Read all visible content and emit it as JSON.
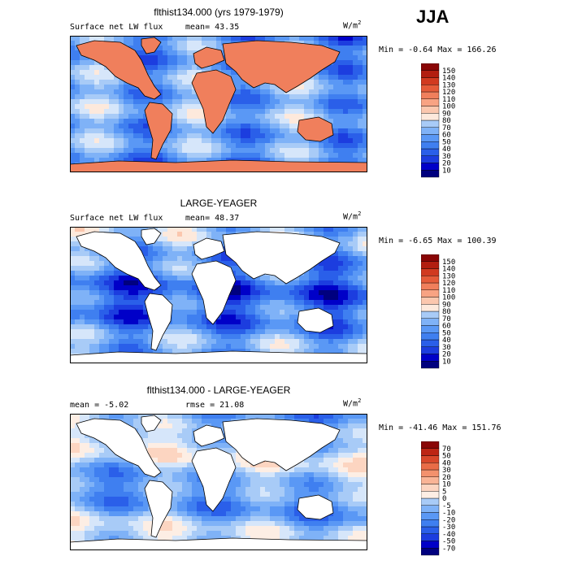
{
  "season": "JJA",
  "palettes": {
    "sequential": [
      "#00007f",
      "#0000c8",
      "#1c3ddf",
      "#2a5fe9",
      "#3f7ff0",
      "#5a98f5",
      "#7fb2f7",
      "#a8cbf7",
      "#d6e6fa",
      "#fde9dc",
      "#fbc7ae",
      "#f8a383",
      "#f07f5c",
      "#e55b39",
      "#d13a20",
      "#b21e10",
      "#8a0606"
    ],
    "diverging": [
      "#00007f",
      "#0000c8",
      "#1c3ddf",
      "#2a5fe9",
      "#3f7ff0",
      "#5a98f5",
      "#7fb2f7",
      "#a8cbf7",
      "#d6e6fa",
      "#fdeee4",
      "#fcd5c1",
      "#f9b496",
      "#f3916d",
      "#e96c47",
      "#d8472a",
      "#bd2514",
      "#8a0606"
    ]
  },
  "chart_data": [
    {
      "type": "heatmap",
      "title": "flthist134.000 (yrs 1979-1979)",
      "left_label": "Surface net LW flux",
      "stat_label": "mean=",
      "stat_value": "43.35",
      "units": "W/m",
      "units_exp": "2",
      "min_label": "Min =",
      "min_value": "-0.64",
      "max_label": "Max =",
      "max_value": "166.26",
      "colorbar_levels": [
        "10",
        "20",
        "30",
        "40",
        "50",
        "60",
        "70",
        "80",
        "90",
        "100",
        "110",
        "120",
        "130",
        "140",
        "150"
      ],
      "palette": "sequential",
      "masked_land": false
    },
    {
      "type": "heatmap",
      "title": "LARGE-YEAGER",
      "left_label": "Surface net LW flux",
      "stat_label": "mean=",
      "stat_value": "48.37",
      "units": "W/m",
      "units_exp": "2",
      "min_label": "Min =",
      "min_value": "-6.65",
      "max_label": "Max =",
      "max_value": "100.39",
      "colorbar_levels": [
        "10",
        "20",
        "30",
        "40",
        "50",
        "60",
        "70",
        "80",
        "90",
        "100",
        "110",
        "120",
        "130",
        "140",
        "150"
      ],
      "palette": "sequential",
      "masked_land": true
    },
    {
      "type": "heatmap",
      "title": "flthist134.000 - LARGE-YEAGER",
      "left_label": "mean =",
      "left_value": "-5.02",
      "stat_label": "rmse =",
      "stat_value": "21.08",
      "units": "W/m",
      "units_exp": "2",
      "min_label": "Min =",
      "min_value": "-41.46",
      "max_label": "Max =",
      "max_value": "151.76",
      "colorbar_levels": [
        "-70",
        "-50",
        "-40",
        "-30",
        "-20",
        "-10",
        "-5",
        "0",
        "5",
        "10",
        "20",
        "30",
        "40",
        "50",
        "70"
      ],
      "palette": "diverging",
      "masked_land": true
    }
  ]
}
